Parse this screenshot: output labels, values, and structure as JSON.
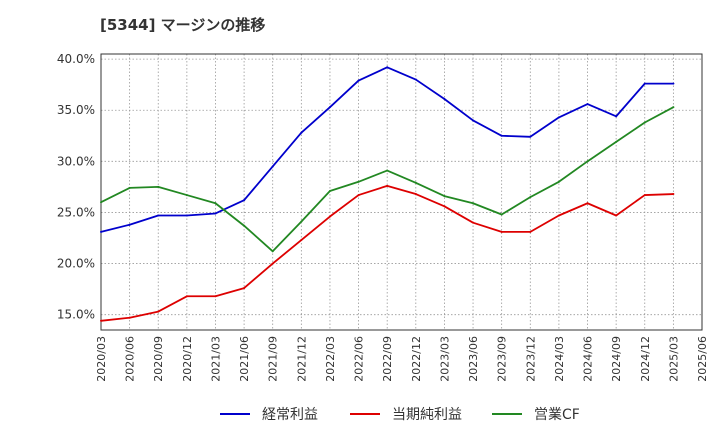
{
  "chart_data": {
    "type": "line",
    "title": "[5344]  マージンの推移",
    "xlabel": "",
    "ylabel": "",
    "ylim": [
      13.5,
      40.5
    ],
    "yticks": [
      15,
      20,
      25,
      30,
      35,
      40
    ],
    "ytick_labels": [
      "15.0%",
      "20.0%",
      "25.0%",
      "30.0%",
      "35.0%",
      "40.0%"
    ],
    "x": [
      "2020/03",
      "2020/06",
      "2020/09",
      "2020/12",
      "2021/03",
      "2021/06",
      "2021/09",
      "2021/12",
      "2022/03",
      "2022/06",
      "2022/09",
      "2022/12",
      "2023/03",
      "2023/06",
      "2023/09",
      "2023/12",
      "2024/03",
      "2024/06",
      "2024/09",
      "2024/12",
      "2025/03",
      "2025/06"
    ],
    "grid": true,
    "legend_position": "bottom",
    "series": [
      {
        "name": "経常利益",
        "color": "#0000cc",
        "values": [
          23.1,
          23.8,
          24.7,
          24.7,
          24.9,
          26.2,
          29.5,
          32.8,
          35.3,
          37.9,
          39.2,
          38.0,
          36.1,
          34.0,
          32.5,
          32.4,
          34.3,
          35.6,
          34.4,
          37.6,
          37.6,
          null
        ]
      },
      {
        "name": "当期純利益",
        "color": "#dd0000",
        "values": [
          14.4,
          14.7,
          15.3,
          16.8,
          16.8,
          17.6,
          20.0,
          22.3,
          24.6,
          26.7,
          27.6,
          26.8,
          25.6,
          24.0,
          23.1,
          23.1,
          24.7,
          25.9,
          24.7,
          26.7,
          26.8,
          null
        ]
      },
      {
        "name": "営業CF",
        "color": "#228822",
        "values": [
          26.0,
          27.4,
          27.5,
          26.7,
          25.9,
          23.7,
          21.2,
          24.1,
          27.1,
          28.0,
          29.1,
          27.9,
          26.6,
          25.9,
          24.8,
          26.5,
          28.0,
          30.0,
          31.9,
          33.8,
          35.3,
          null
        ]
      }
    ]
  }
}
